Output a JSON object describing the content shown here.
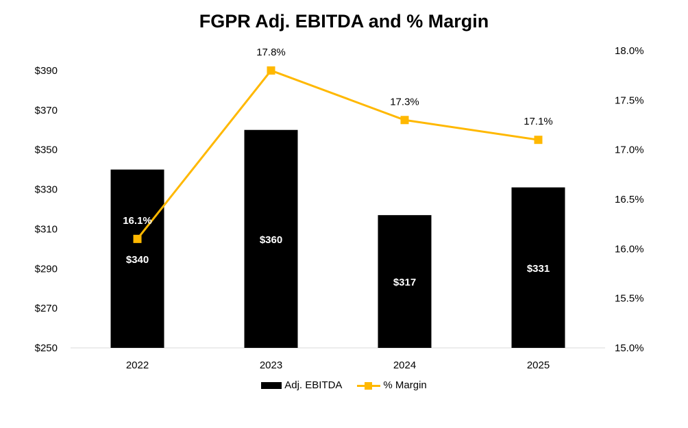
{
  "chart_data": {
    "type": "bar+line",
    "title": "FGPR Adj. EBITDA and % Margin",
    "categories": [
      "2022",
      "2023",
      "2024",
      "2025"
    ],
    "series": [
      {
        "name": "Adj. EBITDA",
        "type": "bar",
        "axis": "left",
        "values": [
          340,
          360,
          317,
          331
        ],
        "labels": [
          "$340",
          "$360",
          "$317",
          "$331"
        ],
        "color": "#000000"
      },
      {
        "name": "% Margin",
        "type": "line",
        "axis": "right",
        "values": [
          16.1,
          17.8,
          17.3,
          17.1
        ],
        "labels": [
          "16.1%",
          "17.8%",
          "17.3%",
          "17.1%"
        ],
        "color": "#FFB800"
      }
    ],
    "left_axis": {
      "ylim": [
        250,
        400
      ],
      "ticks": [
        "$250",
        "$270",
        "$290",
        "$310",
        "$330",
        "$350",
        "$370",
        "$390"
      ],
      "tick_values": [
        250,
        270,
        290,
        310,
        330,
        350,
        370,
        390
      ]
    },
    "right_axis": {
      "ylim": [
        15.0,
        18.0
      ],
      "ticks": [
        "15.0%",
        "15.5%",
        "16.0%",
        "16.5%",
        "17.0%",
        "17.5%",
        "18.0%"
      ],
      "tick_values": [
        15.0,
        15.5,
        16.0,
        16.5,
        17.0,
        17.5,
        18.0
      ]
    },
    "grid": false,
    "legend": "bottom-center"
  }
}
